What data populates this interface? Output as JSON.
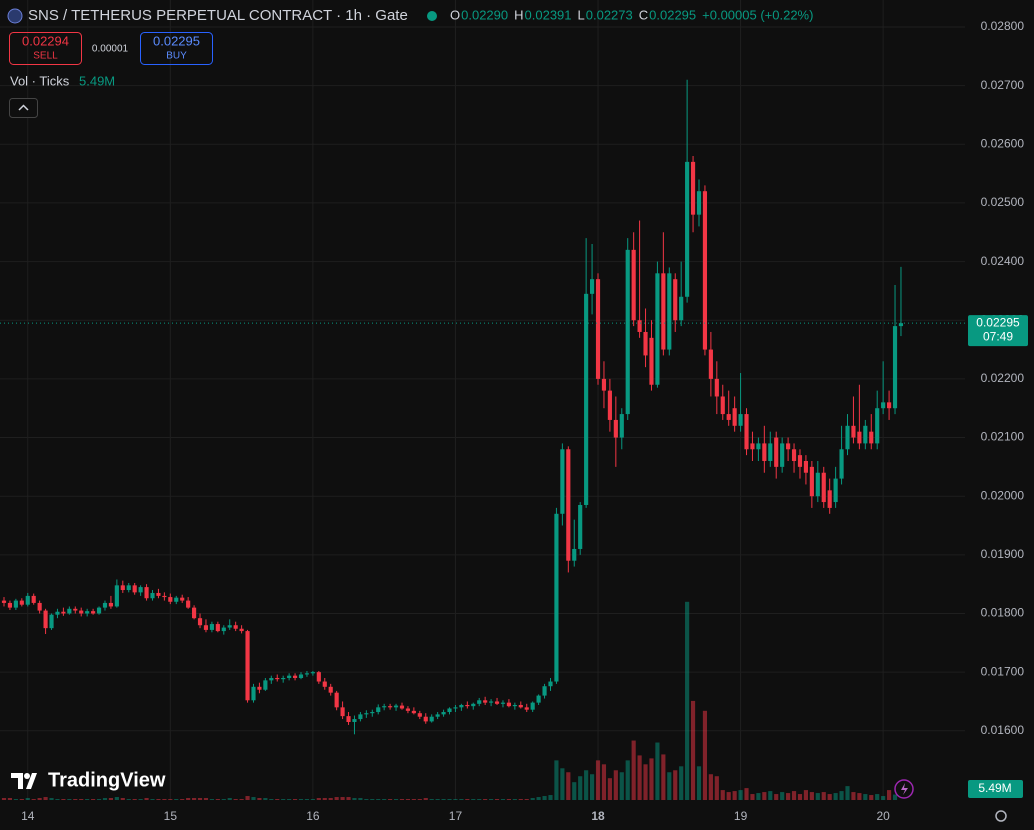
{
  "header": {
    "title": "SNS / TETHERUS PERPETUAL CONTRACT · 1h · Gate",
    "ohlc": [
      {
        "label": "O",
        "value": "0.02290"
      },
      {
        "label": "H",
        "value": "0.02391"
      },
      {
        "label": "L",
        "value": "0.02273"
      },
      {
        "label": "C",
        "value": "0.02295"
      }
    ],
    "change": "+0.00005 (+0.22%)"
  },
  "trade": {
    "sell_price": "0.02294",
    "sell": "SELL",
    "spread": "0.00001",
    "buy_price": "0.02295",
    "buy": "BUY"
  },
  "volume_legend": {
    "label": "Vol · Ticks",
    "value": "5.49M"
  },
  "price_tag": {
    "price": "0.02295",
    "countdown": "07:49"
  },
  "volume_tag": "5.49M",
  "logo": "TradingView",
  "chart_data": {
    "type": "candlestick",
    "up_color": "#089981",
    "down_color": "#f23645",
    "grid": true,
    "ylim": [
      0.01482,
      0.02846
    ],
    "yticks": [
      {
        "value": 0.016,
        "label": "0.01600"
      },
      {
        "value": 0.017,
        "label": "0.01700"
      },
      {
        "value": 0.018,
        "label": "0.01800"
      },
      {
        "value": 0.019,
        "label": "0.01900"
      },
      {
        "value": 0.02,
        "label": "0.02000"
      },
      {
        "value": 0.021,
        "label": "0.02100"
      },
      {
        "value": 0.022,
        "label": "0.02200"
      },
      {
        "value": 0.023,
        "label": "0.02300"
      },
      {
        "value": 0.024,
        "label": "0.02400"
      },
      {
        "value": 0.025,
        "label": "0.02500"
      },
      {
        "value": 0.026,
        "label": "0.02600"
      },
      {
        "value": 0.027,
        "label": "0.02700"
      },
      {
        "value": 0.028,
        "label": "0.02800"
      }
    ],
    "xlim": [
      -0.673,
      161.78
    ],
    "xticks": [
      {
        "value": 4,
        "label": "14"
      },
      {
        "value": 28,
        "label": "15"
      },
      {
        "value": 52,
        "label": "16"
      },
      {
        "value": 76,
        "label": "17"
      },
      {
        "value": 100,
        "label": "18"
      },
      {
        "value": 124,
        "label": "19"
      },
      {
        "value": 148,
        "label": "20"
      }
    ],
    "vlim": [
      0,
      220
    ],
    "candles": [
      [
        0.01822,
        0.01828,
        0.01812,
        0.01818
      ],
      [
        0.01818,
        0.01822,
        0.01806,
        0.0181
      ],
      [
        0.0181,
        0.01825,
        0.01806,
        0.01822
      ],
      [
        0.01822,
        0.01826,
        0.01812,
        0.01815
      ],
      [
        0.01815,
        0.01835,
        0.01812,
        0.0183
      ],
      [
        0.0183,
        0.01834,
        0.01815,
        0.01818
      ],
      [
        0.01818,
        0.01822,
        0.018,
        0.01805
      ],
      [
        0.01805,
        0.01808,
        0.01765,
        0.01775
      ],
      [
        0.01775,
        0.018,
        0.01772,
        0.01798
      ],
      [
        0.01798,
        0.01808,
        0.01792,
        0.01803
      ],
      [
        0.01803,
        0.0181,
        0.01796,
        0.018
      ],
      [
        0.018,
        0.01812,
        0.01798,
        0.01808
      ],
      [
        0.01808,
        0.01812,
        0.018,
        0.01805
      ],
      [
        0.01805,
        0.0181,
        0.01795,
        0.018
      ],
      [
        0.018,
        0.01808,
        0.01795,
        0.01804
      ],
      [
        0.01804,
        0.01808,
        0.01798,
        0.018
      ],
      [
        0.018,
        0.01812,
        0.01798,
        0.0181
      ],
      [
        0.0181,
        0.01822,
        0.01805,
        0.01818
      ],
      [
        0.01818,
        0.0183,
        0.01808,
        0.01812
      ],
      [
        0.01812,
        0.01858,
        0.0181,
        0.01848
      ],
      [
        0.01848,
        0.01856,
        0.01835,
        0.0184
      ],
      [
        0.0184,
        0.01852,
        0.01836,
        0.01848
      ],
      [
        0.01848,
        0.01852,
        0.01832,
        0.01836
      ],
      [
        0.01836,
        0.01848,
        0.0183,
        0.01845
      ],
      [
        0.01845,
        0.0185,
        0.01822,
        0.01826
      ],
      [
        0.01826,
        0.0184,
        0.01822,
        0.01835
      ],
      [
        0.01835,
        0.01842,
        0.01826,
        0.0183
      ],
      [
        0.0183,
        0.01836,
        0.01822,
        0.01828
      ],
      [
        0.01828,
        0.01834,
        0.01816,
        0.0182
      ],
      [
        0.0182,
        0.0183,
        0.01816,
        0.01827
      ],
      [
        0.01827,
        0.01832,
        0.01818,
        0.01822
      ],
      [
        0.01822,
        0.01828,
        0.01808,
        0.0181
      ],
      [
        0.0181,
        0.01814,
        0.0179,
        0.01792
      ],
      [
        0.01792,
        0.018,
        0.01775,
        0.0178
      ],
      [
        0.0178,
        0.0179,
        0.01768,
        0.01772
      ],
      [
        0.01772,
        0.01786,
        0.01768,
        0.01782
      ],
      [
        0.01782,
        0.01786,
        0.01768,
        0.0177
      ],
      [
        0.0177,
        0.0178,
        0.01764,
        0.01776
      ],
      [
        0.01776,
        0.0179,
        0.01772,
        0.0178
      ],
      [
        0.0178,
        0.01786,
        0.0177,
        0.01774
      ],
      [
        0.01774,
        0.0178,
        0.01766,
        0.0177
      ],
      [
        0.0177,
        0.01772,
        0.01648,
        0.01652
      ],
      [
        0.01652,
        0.0168,
        0.01648,
        0.01675
      ],
      [
        0.01675,
        0.01682,
        0.01664,
        0.0167
      ],
      [
        0.0167,
        0.0169,
        0.01668,
        0.01686
      ],
      [
        0.01686,
        0.01694,
        0.0168,
        0.0169
      ],
      [
        0.0169,
        0.01696,
        0.01684,
        0.01688
      ],
      [
        0.01688,
        0.01694,
        0.01682,
        0.0169
      ],
      [
        0.0169,
        0.01698,
        0.01686,
        0.01694
      ],
      [
        0.01694,
        0.01698,
        0.01686,
        0.0169
      ],
      [
        0.0169,
        0.017,
        0.01688,
        0.01696
      ],
      [
        0.01696,
        0.01702,
        0.01692,
        0.01698
      ],
      [
        0.01698,
        0.01702,
        0.01694,
        0.017
      ],
      [
        0.017,
        0.01702,
        0.0168,
        0.01684
      ],
      [
        0.01684,
        0.0169,
        0.0167,
        0.01675
      ],
      [
        0.01675,
        0.0168,
        0.0166,
        0.01665
      ],
      [
        0.01665,
        0.01668,
        0.01635,
        0.0164
      ],
      [
        0.0164,
        0.0165,
        0.0162,
        0.01625
      ],
      [
        0.01625,
        0.01632,
        0.0161,
        0.01615
      ],
      [
        0.01615,
        0.01626,
        0.01594,
        0.0162
      ],
      [
        0.0162,
        0.01632,
        0.01616,
        0.01628
      ],
      [
        0.01628,
        0.01635,
        0.01622,
        0.0163
      ],
      [
        0.0163,
        0.01636,
        0.01624,
        0.01632
      ],
      [
        0.01632,
        0.01645,
        0.01628,
        0.0164
      ],
      [
        0.0164,
        0.01646,
        0.01635,
        0.01642
      ],
      [
        0.01642,
        0.01646,
        0.01636,
        0.0164
      ],
      [
        0.0164,
        0.01646,
        0.01634,
        0.01643
      ],
      [
        0.01643,
        0.01648,
        0.01636,
        0.01638
      ],
      [
        0.01638,
        0.01642,
        0.0163,
        0.01634
      ],
      [
        0.01634,
        0.0164,
        0.01628,
        0.0163
      ],
      [
        0.0163,
        0.01634,
        0.0162,
        0.01624
      ],
      [
        0.01624,
        0.0163,
        0.01612,
        0.01616
      ],
      [
        0.01616,
        0.01628,
        0.01614,
        0.01624
      ],
      [
        0.01624,
        0.01632,
        0.0162,
        0.01628
      ],
      [
        0.01628,
        0.01636,
        0.01624,
        0.01632
      ],
      [
        0.01632,
        0.0164,
        0.01628,
        0.01638
      ],
      [
        0.01638,
        0.01644,
        0.01632,
        0.0164
      ],
      [
        0.0164,
        0.01646,
        0.01634,
        0.01644
      ],
      [
        0.01644,
        0.0165,
        0.01638,
        0.01642
      ],
      [
        0.01642,
        0.01648,
        0.01636,
        0.01646
      ],
      [
        0.01646,
        0.01656,
        0.01642,
        0.01652
      ],
      [
        0.01652,
        0.01658,
        0.01644,
        0.01648
      ],
      [
        0.01648,
        0.01654,
        0.01642,
        0.0165
      ],
      [
        0.0165,
        0.01656,
        0.01644,
        0.01646
      ],
      [
        0.01646,
        0.01652,
        0.0164,
        0.01648
      ],
      [
        0.01648,
        0.01654,
        0.0164,
        0.01642
      ],
      [
        0.01642,
        0.01648,
        0.01636,
        0.01644
      ],
      [
        0.01644,
        0.0165,
        0.01638,
        0.0164
      ],
      [
        0.0164,
        0.01646,
        0.01632,
        0.01636
      ],
      [
        0.01636,
        0.0165,
        0.01632,
        0.01648
      ],
      [
        0.01648,
        0.01662,
        0.01644,
        0.0166
      ],
      [
        0.0166,
        0.0168,
        0.01655,
        0.01676
      ],
      [
        0.01676,
        0.0169,
        0.01668,
        0.01684
      ],
      [
        0.01684,
        0.0198,
        0.0168,
        0.0197
      ],
      [
        0.0197,
        0.0209,
        0.0195,
        0.0208
      ],
      [
        0.0208,
        0.02085,
        0.0187,
        0.0189
      ],
      [
        0.0189,
        0.0196,
        0.0188,
        0.0191
      ],
      [
        0.0191,
        0.0199,
        0.019,
        0.01985
      ],
      [
        0.01985,
        0.0244,
        0.0198,
        0.02345
      ],
      [
        0.02345,
        0.0243,
        0.0231,
        0.0237
      ],
      [
        0.0237,
        0.0238,
        0.0219,
        0.022
      ],
      [
        0.022,
        0.0223,
        0.0215,
        0.0218
      ],
      [
        0.0218,
        0.022,
        0.0211,
        0.0213
      ],
      [
        0.0213,
        0.0217,
        0.0205,
        0.021
      ],
      [
        0.021,
        0.0215,
        0.0208,
        0.0214
      ],
      [
        0.0214,
        0.0244,
        0.0213,
        0.0242
      ],
      [
        0.0242,
        0.0245,
        0.0229,
        0.023
      ],
      [
        0.023,
        0.0247,
        0.0227,
        0.0228
      ],
      [
        0.0228,
        0.0232,
        0.0222,
        0.0224
      ],
      [
        0.0227,
        0.023,
        0.0218,
        0.0219
      ],
      [
        0.0219,
        0.024,
        0.02185,
        0.0238
      ],
      [
        0.0238,
        0.0245,
        0.0224,
        0.0225
      ],
      [
        0.0225,
        0.0239,
        0.0224,
        0.0238
      ],
      [
        0.0237,
        0.0238,
        0.0228,
        0.023
      ],
      [
        0.023,
        0.024,
        0.0229,
        0.0234
      ],
      [
        0.0234,
        0.0271,
        0.0233,
        0.0257
      ],
      [
        0.0257,
        0.0258,
        0.0245,
        0.0248
      ],
      [
        0.0248,
        0.0254,
        0.0246,
        0.0252
      ],
      [
        0.0252,
        0.0253,
        0.0224,
        0.0225
      ],
      [
        0.0225,
        0.0228,
        0.0217,
        0.022
      ],
      [
        0.022,
        0.0223,
        0.0214,
        0.0217
      ],
      [
        0.0217,
        0.0219,
        0.0213,
        0.0214
      ],
      [
        0.0214,
        0.0218,
        0.0212,
        0.0213
      ],
      [
        0.0215,
        0.0217,
        0.0211,
        0.0212
      ],
      [
        0.0212,
        0.0221,
        0.0211,
        0.0214
      ],
      [
        0.0214,
        0.0215,
        0.0207,
        0.0208
      ],
      [
        0.0209,
        0.0211,
        0.0206,
        0.0208
      ],
      [
        0.0208,
        0.021,
        0.0206,
        0.0209
      ],
      [
        0.0209,
        0.0212,
        0.0204,
        0.0206
      ],
      [
        0.0206,
        0.0211,
        0.0205,
        0.0209
      ],
      [
        0.021,
        0.0211,
        0.0203,
        0.0205
      ],
      [
        0.0205,
        0.021,
        0.0204,
        0.0209
      ],
      [
        0.0209,
        0.021,
        0.0206,
        0.0208
      ],
      [
        0.0208,
        0.0209,
        0.0204,
        0.0206
      ],
      [
        0.0207,
        0.0208,
        0.0203,
        0.0205
      ],
      [
        0.0206,
        0.0207,
        0.0202,
        0.0204
      ],
      [
        0.0205,
        0.0206,
        0.0198,
        0.02
      ],
      [
        0.02,
        0.0206,
        0.0199,
        0.0204
      ],
      [
        0.0204,
        0.0205,
        0.0198,
        0.0199
      ],
      [
        0.0201,
        0.0203,
        0.0197,
        0.0198
      ],
      [
        0.0199,
        0.0205,
        0.0198,
        0.0203
      ],
      [
        0.0203,
        0.0212,
        0.0202,
        0.0208
      ],
      [
        0.0208,
        0.0214,
        0.0207,
        0.0212
      ],
      [
        0.0212,
        0.0217,
        0.0209,
        0.021
      ],
      [
        0.0211,
        0.0219,
        0.0208,
        0.0209
      ],
      [
        0.0209,
        0.0213,
        0.0208,
        0.0212
      ],
      [
        0.0211,
        0.0214,
        0.0208,
        0.0209
      ],
      [
        0.0209,
        0.0218,
        0.0208,
        0.0215
      ],
      [
        0.0215,
        0.0223,
        0.0214,
        0.0216
      ],
      [
        0.0216,
        0.0218,
        0.0213,
        0.0215
      ],
      [
        0.0215,
        0.0236,
        0.0214,
        0.0229
      ],
      [
        0.0229,
        0.02391,
        0.02273,
        0.02295
      ]
    ],
    "volumes": [
      2,
      2,
      1,
      1,
      2,
      1,
      2,
      3,
      2,
      1,
      1,
      1,
      1,
      1,
      1,
      1,
      1,
      2,
      2,
      3,
      2,
      1,
      1,
      1,
      2,
      1,
      1,
      1,
      1,
      1,
      1,
      2,
      2,
      2,
      2,
      1,
      1,
      1,
      2,
      1,
      1,
      4,
      3,
      2,
      2,
      1,
      1,
      1,
      1,
      1,
      1,
      1,
      1,
      2,
      2,
      2,
      3,
      3,
      3,
      2,
      2,
      1,
      1,
      1,
      1,
      1,
      1,
      1,
      1,
      1,
      1,
      2,
      1,
      1,
      1,
      1,
      1,
      1,
      1,
      1,
      1,
      1,
      1,
      1,
      1,
      1,
      1,
      1,
      1,
      2,
      3,
      4,
      5,
      40,
      32,
      28,
      18,
      24,
      30,
      26,
      40,
      36,
      22,
      30,
      28,
      40,
      60,
      45,
      36,
      42,
      58,
      46,
      28,
      30,
      34,
      200,
      100,
      34,
      90,
      26,
      24,
      10,
      8,
      9,
      10,
      12,
      6,
      7,
      8,
      9,
      6,
      8,
      7,
      9,
      6,
      10,
      8,
      7,
      8,
      6,
      7,
      9,
      14,
      8,
      7,
      6,
      5,
      6,
      4,
      10,
      5.49
    ]
  }
}
